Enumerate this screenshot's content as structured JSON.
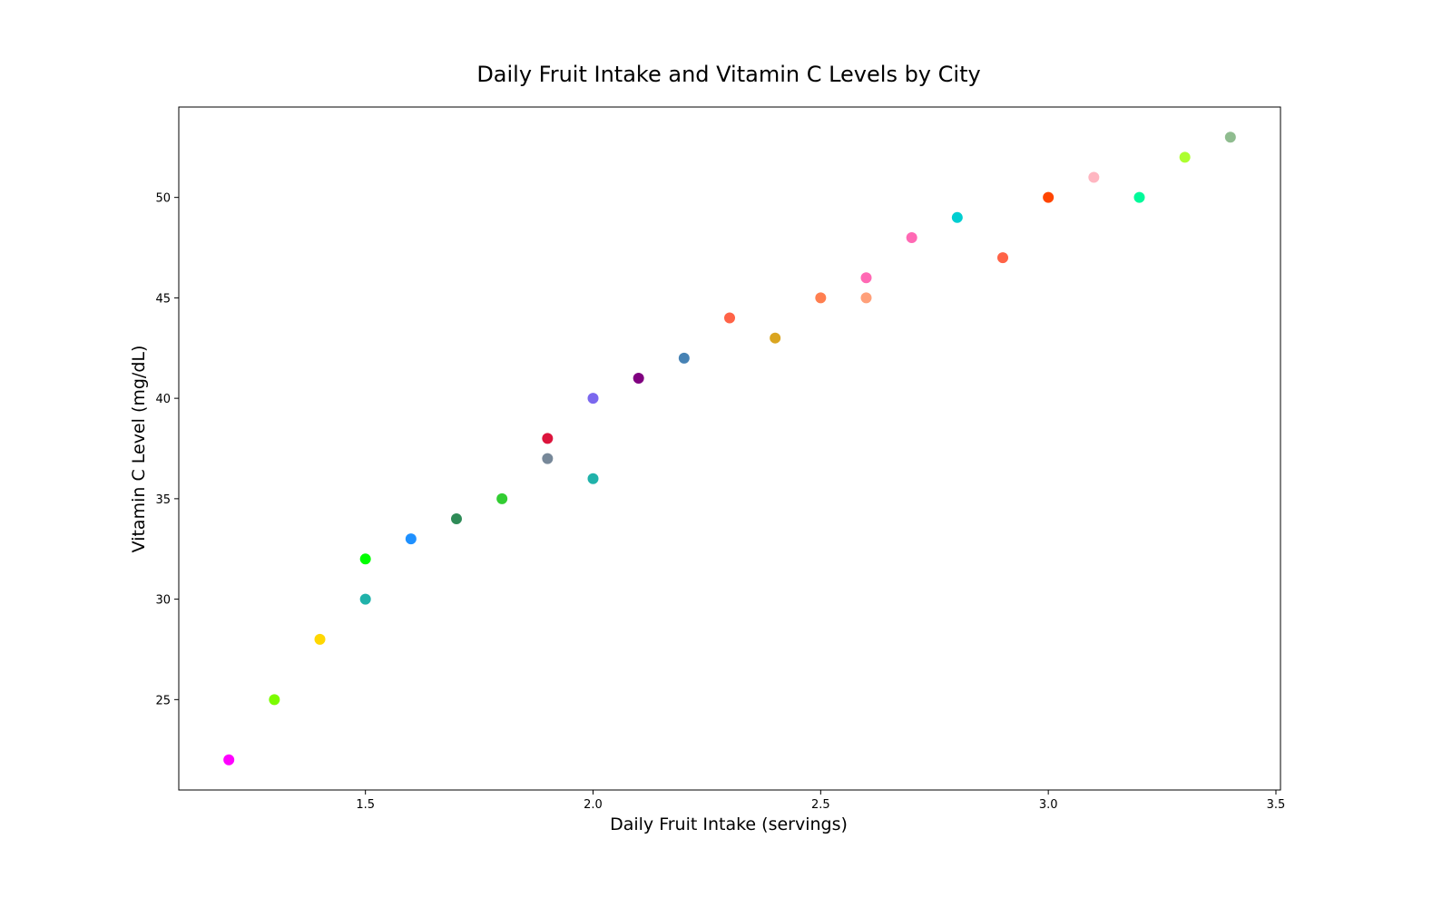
{
  "chart_data": {
    "type": "scatter",
    "title": "Daily Fruit Intake and Vitamin C Levels by City",
    "xlabel": "Daily Fruit Intake (servings)",
    "ylabel": "Vitamin C Level (mg/dL)",
    "xlim": [
      1.09,
      3.51
    ],
    "ylim": [
      20.5,
      54.5
    ],
    "x_ticks": [
      1.5,
      2.0,
      2.5,
      3.0,
      3.5
    ],
    "x_tick_labels": [
      "1.5",
      "2.0",
      "2.5",
      "3.0",
      "3.5"
    ],
    "y_ticks": [
      25,
      30,
      35,
      40,
      45,
      50
    ],
    "y_tick_labels": [
      "25",
      "30",
      "35",
      "40",
      "45",
      "50"
    ],
    "grid": false,
    "legend": "none",
    "points": [
      {
        "x": 1.2,
        "y": 22,
        "color": "#ff00ff"
      },
      {
        "x": 1.3,
        "y": 25,
        "color": "#7cfc00"
      },
      {
        "x": 1.4,
        "y": 28,
        "color": "#ffd700"
      },
      {
        "x": 1.5,
        "y": 30,
        "color": "#20b2aa"
      },
      {
        "x": 1.5,
        "y": 32,
        "color": "#00ff00"
      },
      {
        "x": 1.6,
        "y": 33,
        "color": "#1e90ff"
      },
      {
        "x": 1.7,
        "y": 34,
        "color": "#2e8b57"
      },
      {
        "x": 1.8,
        "y": 35,
        "color": "#32cd32"
      },
      {
        "x": 1.9,
        "y": 37,
        "color": "#778899"
      },
      {
        "x": 1.9,
        "y": 38,
        "color": "#dc143c"
      },
      {
        "x": 2.0,
        "y": 36,
        "color": "#20b2aa"
      },
      {
        "x": 2.0,
        "y": 40,
        "color": "#7b68ee"
      },
      {
        "x": 2.1,
        "y": 41,
        "color": "#800080"
      },
      {
        "x": 2.2,
        "y": 42,
        "color": "#4682b4"
      },
      {
        "x": 2.3,
        "y": 44,
        "color": "#ff6347"
      },
      {
        "x": 2.4,
        "y": 43,
        "color": "#daa520"
      },
      {
        "x": 2.5,
        "y": 45,
        "color": "#ff7f50"
      },
      {
        "x": 2.6,
        "y": 45,
        "color": "#ffa07a"
      },
      {
        "x": 2.6,
        "y": 46,
        "color": "#ff69b4"
      },
      {
        "x": 2.7,
        "y": 48,
        "color": "#ff69b4"
      },
      {
        "x": 2.8,
        "y": 49,
        "color": "#00ced1"
      },
      {
        "x": 2.9,
        "y": 47,
        "color": "#ff6347"
      },
      {
        "x": 3.0,
        "y": 50,
        "color": "#ff4500"
      },
      {
        "x": 3.1,
        "y": 51,
        "color": "#ffb6c1"
      },
      {
        "x": 3.2,
        "y": 50,
        "color": "#00fa9a"
      },
      {
        "x": 3.3,
        "y": 52,
        "color": "#adff2f"
      },
      {
        "x": 3.4,
        "y": 53,
        "color": "#8fbc8f"
      }
    ]
  }
}
